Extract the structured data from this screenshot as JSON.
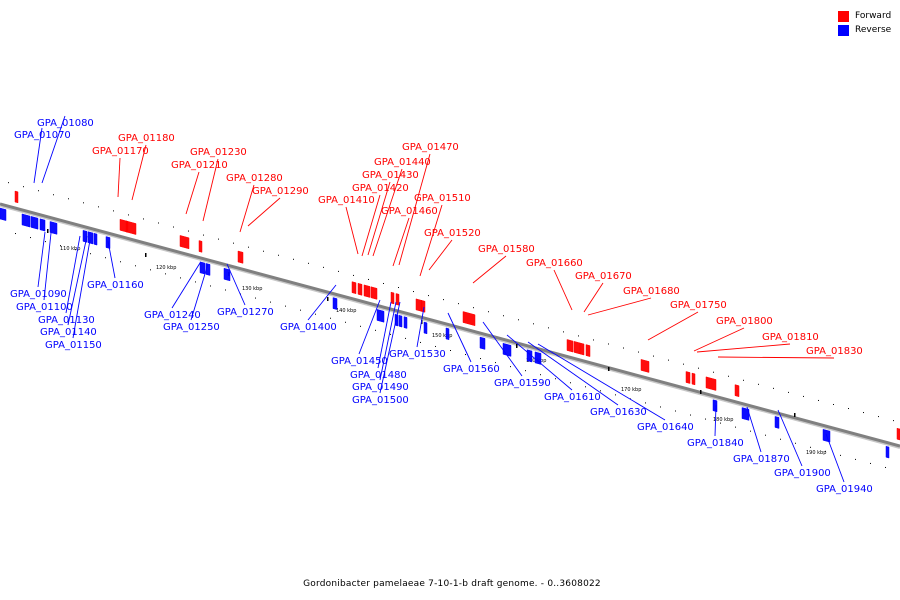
{
  "legend": {
    "forward": {
      "label": "Forward",
      "color": "#ff0000"
    },
    "reverse": {
      "label": "Reverse",
      "color": "#0000ff"
    }
  },
  "caption": "Gordonibacter pamelaeae 7-10-1-b draft genome. - 0..3608022",
  "colors": {
    "backbone": "#808080",
    "forward_label": "#ff0000",
    "reverse_label": "#0000ff"
  },
  "scale_ticks": [
    "110 kbp",
    "120 kbp",
    "130 kbp",
    "140 kbp",
    "150 kbp",
    "160 kbp",
    "170 kbp",
    "180 kbp",
    "190 kbp"
  ],
  "forward_genes": [
    "GPA_01170",
    "GPA_01180",
    "GPA_01210",
    "GPA_01230",
    "GPA_01280",
    "GPA_01290",
    "GPA_01410",
    "GPA_01420",
    "GPA_01430",
    "GPA_01440",
    "GPA_01460",
    "GPA_01470",
    "GPA_01510",
    "GPA_01520",
    "GPA_01580",
    "GPA_01660",
    "GPA_01670",
    "GPA_01680",
    "GPA_01750",
    "GPA_01800",
    "GPA_01810",
    "GPA_01830"
  ],
  "reverse_genes": [
    "GPA_01070",
    "GPA_01080",
    "GPA_01090",
    "GPA_01100",
    "GPA_01130",
    "GPA_01140",
    "GPA_01150",
    "GPA_01160",
    "GPA_01240",
    "GPA_01250",
    "GPA_01270",
    "GPA_01400",
    "GPA_01450",
    "GPA_01480",
    "GPA_01490",
    "GPA_01500",
    "GPA_01530",
    "GPA_01560",
    "GPA_01590",
    "GPA_01610",
    "GPA_01630",
    "GPA_01640",
    "GPA_01840",
    "GPA_01870",
    "GPA_01900",
    "GPA_01940"
  ]
}
